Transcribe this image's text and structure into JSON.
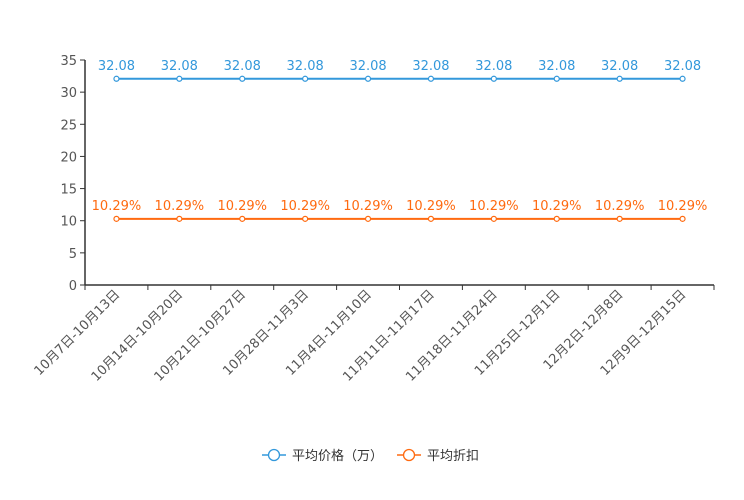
{
  "chart_data": {
    "type": "line",
    "categories": [
      "10月7日-10月13日",
      "10月14日-10月20日",
      "10月21日-10月27日",
      "10月28日-11月3日",
      "11月4日-11月10日",
      "11月11日-11月17日",
      "11月18日-11月24日",
      "11月25日-12月1日",
      "12月2日-12月8日",
      "12月9日-12月15日"
    ],
    "series": [
      {
        "name": "平均价格（万）",
        "color": "#3398db",
        "values": [
          32.08,
          32.08,
          32.08,
          32.08,
          32.08,
          32.08,
          32.08,
          32.08,
          32.08,
          32.08
        ],
        "labels": [
          "32.08",
          "32.08",
          "32.08",
          "32.08",
          "32.08",
          "32.08",
          "32.08",
          "32.08",
          "32.08",
          "32.08"
        ]
      },
      {
        "name": "平均折扣",
        "color": "#ff6a10",
        "values": [
          10.29,
          10.29,
          10.29,
          10.29,
          10.29,
          10.29,
          10.29,
          10.29,
          10.29,
          10.29
        ],
        "labels": [
          "10.29%",
          "10.29%",
          "10.29%",
          "10.29%",
          "10.29%",
          "10.29%",
          "10.29%",
          "10.29%",
          "10.29%",
          "10.29%"
        ]
      }
    ],
    "ylim": [
      0,
      35
    ],
    "yticks": [
      "0",
      "5",
      "10",
      "15",
      "20",
      "25",
      "30",
      "35"
    ],
    "grid": false,
    "legend": "bottom-center"
  }
}
